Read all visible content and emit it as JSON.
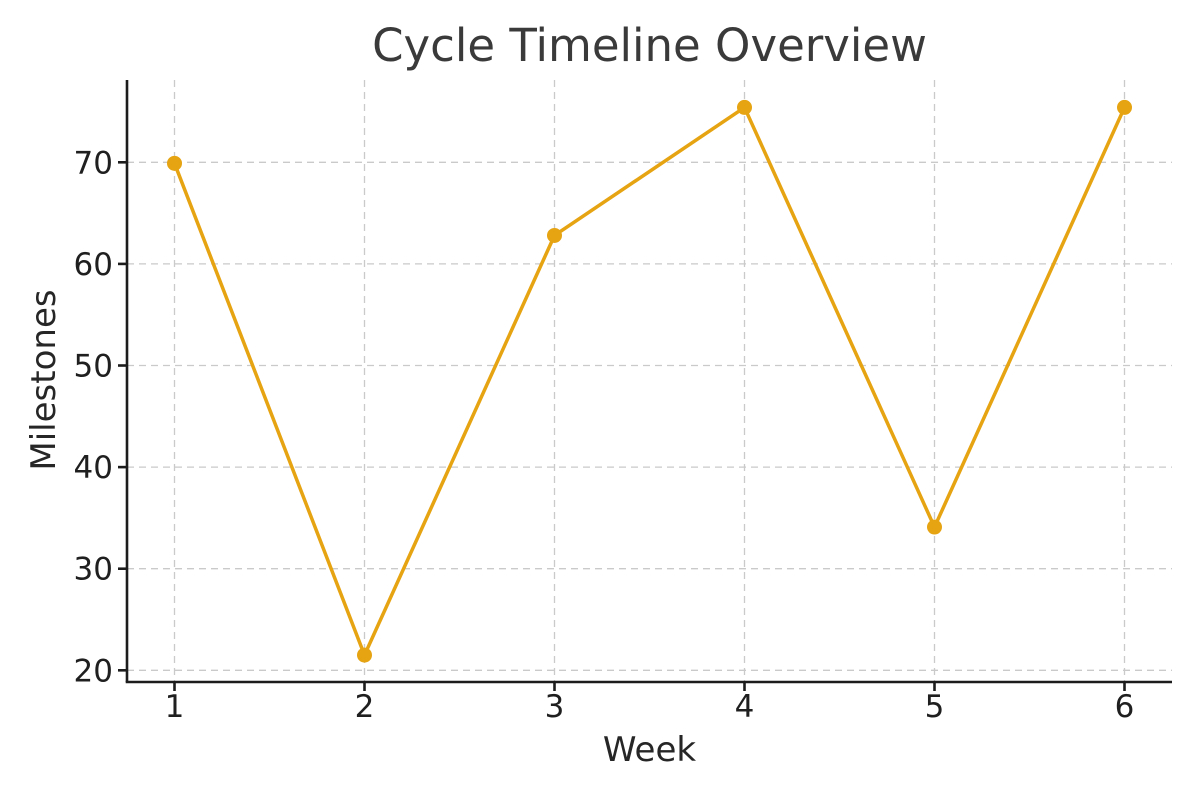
{
  "chart_data": {
    "type": "line",
    "title": "Cycle Timeline Overview",
    "xlabel": "Week",
    "ylabel": "Milestones",
    "x": [
      1,
      2,
      3,
      4,
      5,
      6
    ],
    "categories": [
      "1",
      "2",
      "3",
      "4",
      "5",
      "6"
    ],
    "series": [
      {
        "name": "Milestones",
        "values": [
          69.9,
          21.5,
          62.8,
          75.4,
          34.1,
          75.4
        ]
      }
    ],
    "xticks": [
      1,
      2,
      3,
      4,
      5,
      6
    ],
    "xtick_labels": [
      "1",
      "2",
      "3",
      "4",
      "5",
      "6"
    ],
    "yticks": [
      20,
      30,
      40,
      50,
      60,
      70
    ],
    "ytick_labels": [
      "20",
      "30",
      "40",
      "50",
      "60",
      "70"
    ],
    "xlim": [
      0.75,
      6.25
    ],
    "ylim": [
      18.85,
      78.1
    ],
    "grid": true,
    "grid_style": "dashed",
    "legend": false,
    "marker": "circle",
    "colors": {
      "line": "#E6A312",
      "marker": "#E6A312",
      "grid": "#CACACA",
      "spine": "#1C1C1C",
      "tick_text": "#1F1F1F",
      "title_text": "#3A3A3A",
      "background": "#FFFFFF"
    }
  }
}
